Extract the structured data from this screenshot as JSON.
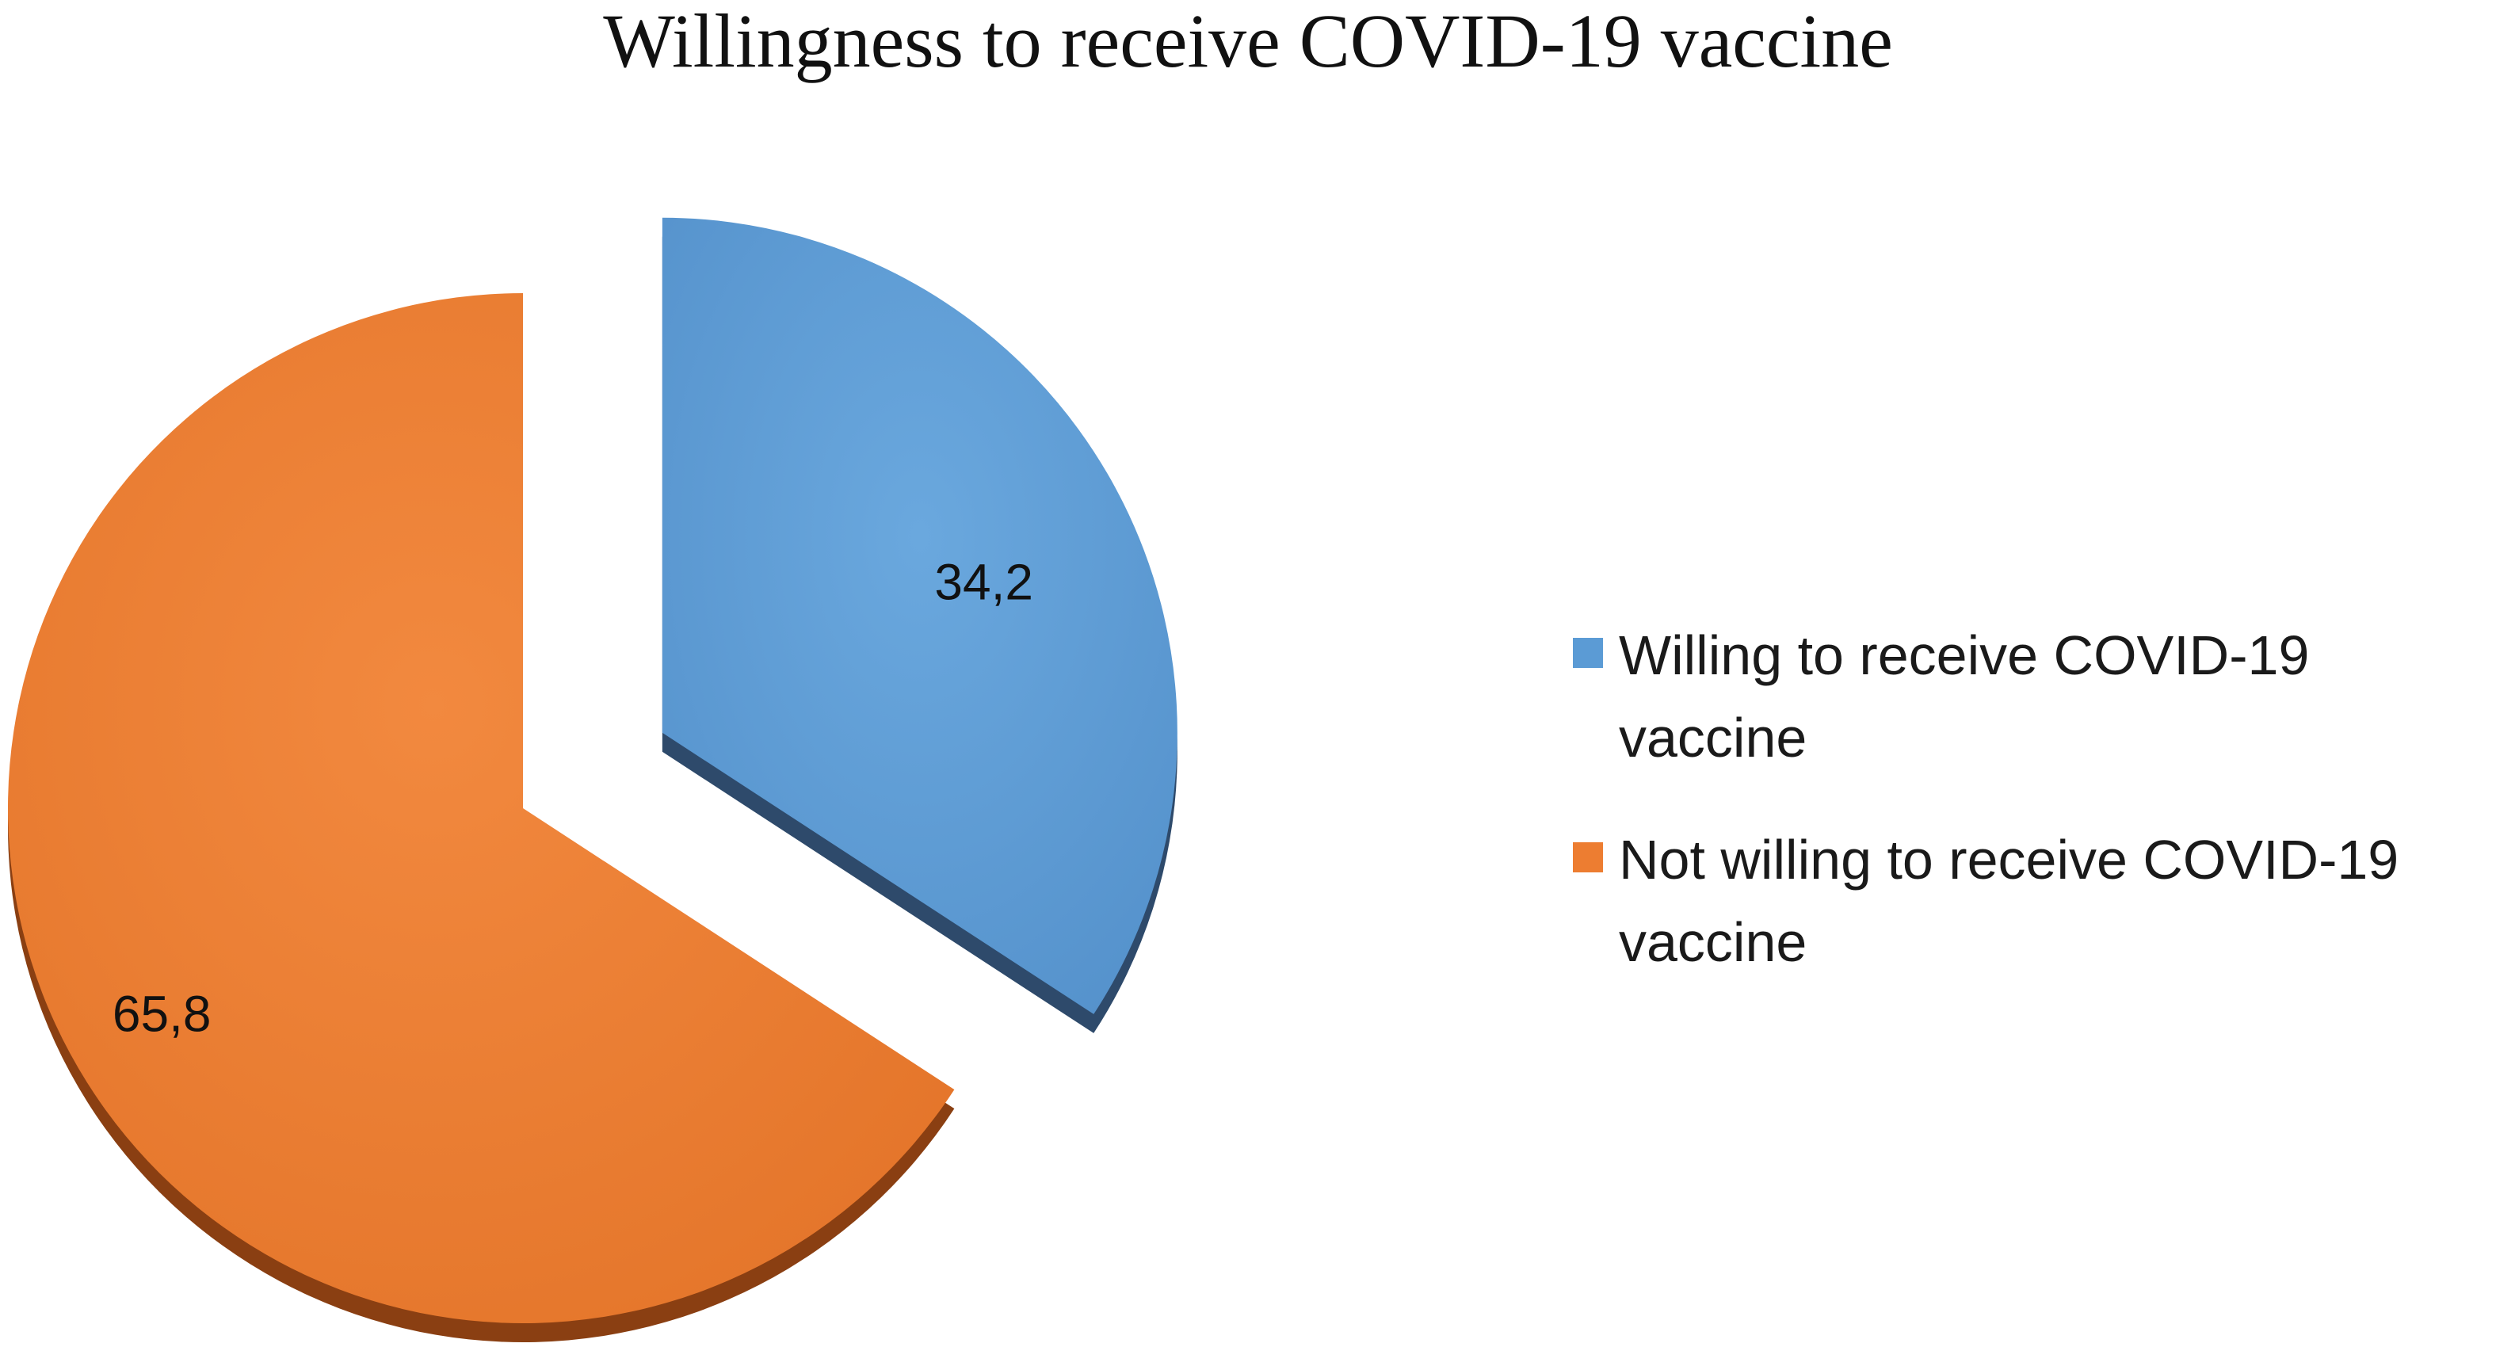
{
  "chart_data": {
    "type": "pie",
    "title": "Willingness to receive COVID-19 vaccine",
    "slices": [
      {
        "label": "Willing to receive COVID-19 vaccine",
        "value": 34.2,
        "display": "34,2",
        "color": "#5B9BD5",
        "shadow": "#2E4A6B",
        "exploded": true
      },
      {
        "label": "Not willing to receive COVID-19 vaccine",
        "value": 65.8,
        "display": "65,8",
        "color": "#ED7D31",
        "shadow": "#8A3F12",
        "exploded": false
      }
    ],
    "legend_position": "right"
  }
}
